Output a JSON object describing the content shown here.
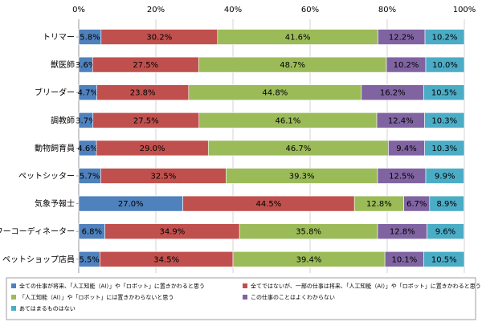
{
  "chart_data": {
    "type": "bar",
    "orientation": "horizontal",
    "stacked": true,
    "xlim": [
      0,
      100
    ],
    "x_ticks": [
      "0%",
      "20%",
      "40%",
      "60%",
      "80%",
      "100%"
    ],
    "x_tick_values": [
      0,
      20,
      40,
      60,
      80,
      100
    ],
    "grid": true,
    "legend_position": "bottom",
    "categories": [
      "トリマー",
      "獣医師",
      "ブリーダー",
      "調教師",
      "動物飼育員",
      "ペットシッター",
      "気象予報士",
      "フラワーコーディネーター",
      "ペットショップ店員"
    ],
    "series": [
      {
        "name": "全ての仕事が将来、「人工知能（AI）」や「ロボット」に置きかわると思う",
        "color": "#4f81bd",
        "values": [
          5.8,
          3.6,
          4.7,
          3.7,
          4.6,
          5.7,
          27.0,
          6.8,
          5.5
        ],
        "labels": [
          "5.8%",
          "3.6%",
          "4.7%",
          "3.7%",
          "4.6%",
          "5.7%",
          "27.0%",
          "6.8%",
          "5.5%"
        ]
      },
      {
        "name": "全てではないが、一部の仕事は将来、「人工知能（AI）」や「ロボット」に置きかわると思う",
        "color": "#c0504d",
        "values": [
          30.2,
          27.5,
          23.8,
          27.5,
          29.0,
          32.5,
          44.5,
          34.9,
          34.5
        ],
        "labels": [
          "30.2%",
          "27.5%",
          "23.8%",
          "27.5%",
          "29.0%",
          "32.5%",
          "44.5%",
          "34.9%",
          "34.5%"
        ]
      },
      {
        "name": "「人工知能（AI）」や「ロボット」には置きかわらないと思う",
        "color": "#9bbb59",
        "values": [
          41.6,
          48.7,
          44.8,
          46.1,
          46.7,
          39.3,
          12.8,
          35.8,
          39.4
        ],
        "labels": [
          "41.6%",
          "48.7%",
          "44.8%",
          "46.1%",
          "46.7%",
          "39.3%",
          "12.8%",
          "35.8%",
          "39.4%"
        ]
      },
      {
        "name": "この仕事のことはよくわからない",
        "color": "#8064a2",
        "values": [
          12.2,
          10.2,
          16.2,
          12.4,
          9.4,
          12.5,
          6.7,
          12.8,
          10.1
        ],
        "labels": [
          "12.2%",
          "10.2%",
          "16.2%",
          "12.4%",
          "9.4%",
          "12.5%",
          "6.7%",
          "12.8%",
          "10.1%"
        ]
      },
      {
        "name": "あてはまるものはない",
        "color": "#4bacc6",
        "values": [
          10.2,
          10.0,
          10.5,
          10.3,
          10.3,
          9.9,
          8.9,
          9.6,
          10.5
        ],
        "labels": [
          "10.2%",
          "10.0%",
          "10.5%",
          "10.3%",
          "10.3%",
          "9.9%",
          "8.9%",
          "9.6%",
          "10.5%"
        ]
      }
    ]
  }
}
